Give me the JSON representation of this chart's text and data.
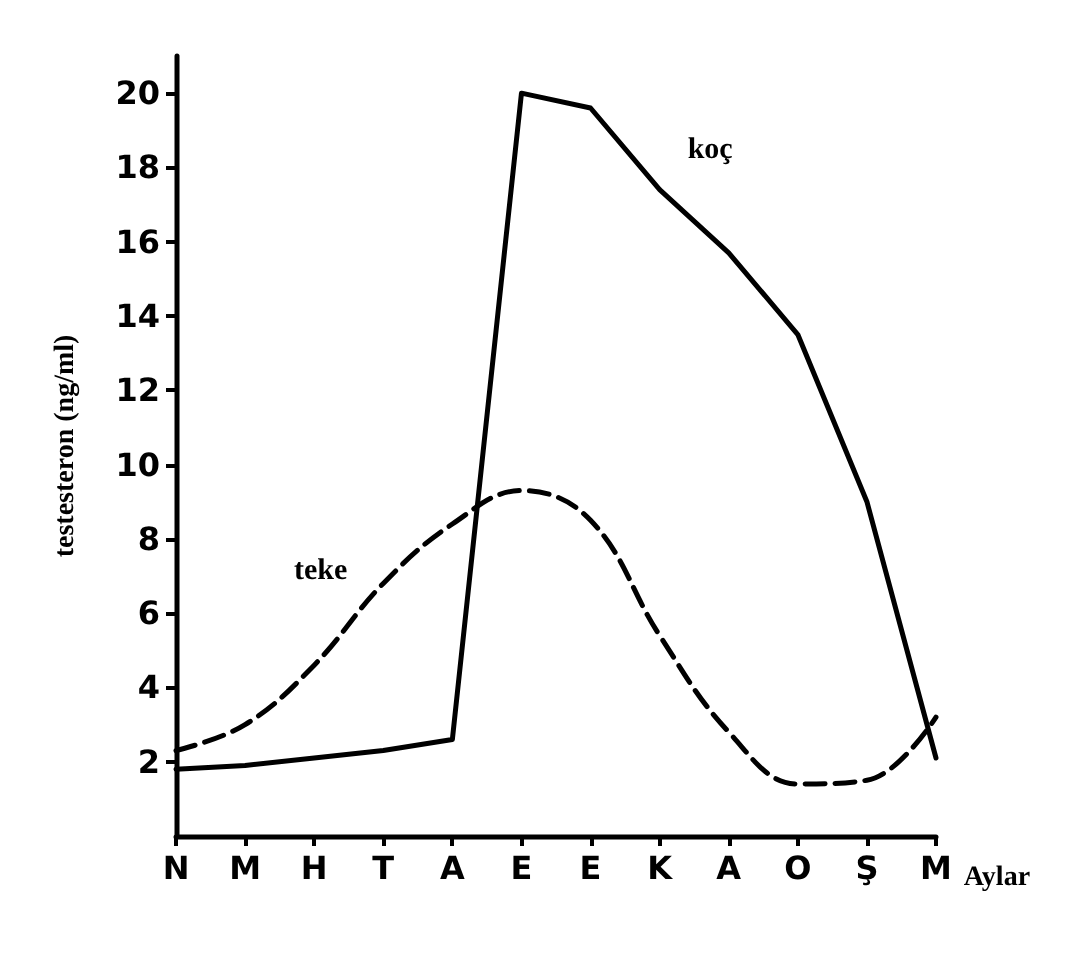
{
  "chart_data": {
    "type": "line",
    "xlabel": "Aylar",
    "ylabel": "testesteron (ng/ml)",
    "categories": [
      "N",
      "M",
      "H",
      "T",
      "A",
      "E",
      "E",
      "K",
      "A",
      "O",
      "Ş",
      "M"
    ],
    "series": [
      {
        "name": "koç",
        "color": "#000000",
        "line_style": "solid",
        "values": [
          1.8,
          1.9,
          2.1,
          2.3,
          2.6,
          20,
          19.6,
          17.4,
          15.7,
          13.5,
          9,
          2.1
        ]
      },
      {
        "name": "teke",
        "color": "#000000",
        "line_style": "dashed",
        "values": [
          2.3,
          3,
          4.6,
          6.8,
          8.4,
          9.3,
          8.5,
          5.4,
          2.8,
          1.4,
          1.5,
          3.2
        ]
      }
    ],
    "ylim": [
      0,
      21
    ],
    "yticks": [
      2,
      4,
      6,
      8,
      10,
      12,
      14,
      16,
      18,
      20
    ],
    "grid": false,
    "legend": false,
    "marker": "none"
  }
}
